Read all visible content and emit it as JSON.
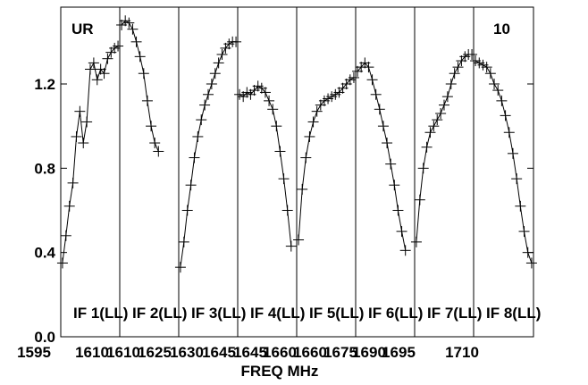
{
  "chart_data": {
    "type": "line",
    "title": "",
    "corner_labels": {
      "left": "UR",
      "right": "10"
    },
    "xlabel": "FREQ MHz",
    "ylabel": "",
    "ylim": [
      0.0,
      1.5
    ],
    "y_ticks": [
      0.0,
      0.4,
      0.8,
      1.2
    ],
    "y_tick_labels": [
      "0.0",
      "0.4",
      "0.8",
      "1.2"
    ],
    "x_tick_labels": [
      {
        "text": "1595",
        "freq": 1595
      },
      {
        "text": "1610",
        "freq": 1610
      },
      {
        "text": "1610",
        "freq": 1611
      },
      {
        "text": "1625",
        "freq": 1625
      },
      {
        "text": "1630",
        "freq": 1630
      },
      {
        "text": "1645",
        "freq": 1645
      },
      {
        "text": "1645",
        "freq": 1646
      },
      {
        "text": "1660",
        "freq": 1660
      },
      {
        "text": "1660",
        "freq": 1661
      },
      {
        "text": "1675",
        "freq": 1675
      },
      {
        "text": "1690",
        "freq": 1690
      },
      {
        "text": "1695",
        "freq": 1695
      },
      {
        "text": "1710",
        "freq": 1710
      }
    ],
    "grid": false,
    "series": [
      {
        "name": "IF 1(LL)",
        "xrange": [
          1593.5,
          1610.5
        ],
        "x": [
          1594,
          1595,
          1596,
          1597,
          1598,
          1599,
          1600,
          1601,
          1602,
          1603,
          1604,
          1605,
          1606,
          1607,
          1608,
          1609,
          1610
        ],
        "y": [
          0.35,
          0.48,
          0.62,
          0.73,
          0.95,
          1.07,
          0.92,
          1.02,
          1.27,
          1.3,
          1.22,
          1.27,
          1.25,
          1.32,
          1.35,
          1.37,
          1.38
        ]
      },
      {
        "name": "IF 2(LL)",
        "xrange": [
          1610.5,
          1626.5
        ],
        "x": [
          1611,
          1612,
          1613,
          1614,
          1615,
          1616,
          1617,
          1618,
          1619,
          1620,
          1621
        ],
        "y": [
          1.48,
          1.5,
          1.49,
          1.46,
          1.4,
          1.33,
          1.25,
          1.12,
          1.0,
          0.92,
          0.88
        ]
      },
      {
        "name": "IF 3(LL)",
        "xrange": [
          1628.5,
          1645.5
        ],
        "x": [
          1629,
          1630,
          1631,
          1632,
          1633,
          1634,
          1635,
          1636,
          1637,
          1638,
          1639,
          1640,
          1641,
          1642,
          1643,
          1644,
          1645
        ],
        "y": [
          0.33,
          0.45,
          0.6,
          0.72,
          0.85,
          0.95,
          1.03,
          1.1,
          1.15,
          1.2,
          1.25,
          1.3,
          1.34,
          1.37,
          1.39,
          1.4,
          1.4
        ]
      },
      {
        "name": "IF 4(LL)",
        "xrange": [
          1645.5,
          1661.5
        ],
        "x": [
          1646,
          1647,
          1648,
          1649,
          1650,
          1651,
          1652,
          1653,
          1654,
          1655,
          1656,
          1657,
          1658,
          1659,
          1660
        ],
        "y": [
          1.15,
          1.14,
          1.16,
          1.15,
          1.17,
          1.19,
          1.18,
          1.16,
          1.12,
          1.08,
          1.0,
          0.88,
          0.75,
          0.6,
          0.43
        ]
      },
      {
        "name": "IF 5(LL)",
        "xrange": [
          1661.5,
          1677.5
        ],
        "x": [
          1662,
          1663,
          1664,
          1665,
          1666,
          1667,
          1668,
          1669,
          1670,
          1671,
          1672,
          1673,
          1674,
          1675,
          1676,
          1677
        ],
        "y": [
          0.46,
          0.7,
          0.85,
          0.95,
          1.02,
          1.07,
          1.1,
          1.12,
          1.13,
          1.14,
          1.15,
          1.16,
          1.18,
          1.2,
          1.22,
          1.23
        ]
      },
      {
        "name": "IF 6(LL)",
        "xrange": [
          1677.5,
          1693.5
        ],
        "x": [
          1678,
          1679,
          1680,
          1681,
          1682,
          1683,
          1684,
          1685,
          1686,
          1687,
          1688,
          1689,
          1690,
          1691
        ],
        "y": [
          1.26,
          1.28,
          1.3,
          1.28,
          1.22,
          1.15,
          1.08,
          1.0,
          0.92,
          0.82,
          0.72,
          0.6,
          0.5,
          0.41
        ]
      },
      {
        "name": "IF 7(LL)",
        "xrange": [
          1693.5,
          1710.5
        ],
        "x": [
          1694,
          1695,
          1696,
          1697,
          1698,
          1699,
          1700,
          1701,
          1702,
          1703,
          1704,
          1705,
          1706,
          1707,
          1708,
          1709,
          1710
        ],
        "y": [
          0.45,
          0.65,
          0.8,
          0.9,
          0.97,
          1.0,
          1.03,
          1.06,
          1.1,
          1.14,
          1.2,
          1.25,
          1.28,
          1.31,
          1.33,
          1.34,
          1.34
        ]
      },
      {
        "name": "IF 8(LL)",
        "xrange": [
          1710.5,
          1726.5
        ],
        "x": [
          1711,
          1712,
          1713,
          1714,
          1715,
          1716,
          1717,
          1718,
          1719,
          1720,
          1721,
          1722,
          1723,
          1724,
          1725,
          1726
        ],
        "y": [
          1.31,
          1.3,
          1.29,
          1.28,
          1.25,
          1.2,
          1.17,
          1.12,
          1.05,
          0.97,
          0.87,
          0.75,
          0.62,
          0.5,
          0.4,
          0.35
        ]
      }
    ]
  }
}
